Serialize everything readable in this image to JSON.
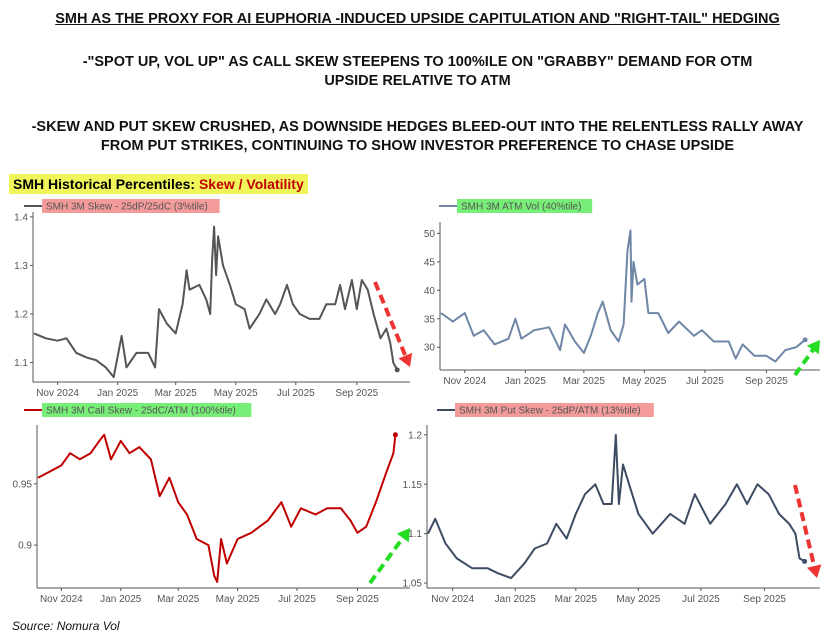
{
  "headline": "SMH AS THE PROXY FOR AI EUPHORIA -INDUCED UPSIDE CAPITULATION AND \"RIGHT-TAIL\" HEDGING",
  "subhead1": "-\"SPOT UP, VOL UP\" AS CALL SKEW STEEPENS TO 100%ILE ON \"GRABBY\" DEMAND FOR OTM UPSIDE RELATIVE TO ATM",
  "subhead2": "-SKEW AND PUT SKEW CRUSHED, AS DOWNSIDE HEDGES BLEED-OUT INTO THE RELENTLESS RALLY AWAY FROM PUT STRIKES, CONTINUING TO SHOW INVESTOR PREFERENCE TO CHASE UPSIDE",
  "section_label": "SMH Historical Percentiles:",
  "section_label_accent": "Skew / Volatility",
  "source": "Source: Nomura Vol",
  "colors": {
    "up_arrow": "#22dd22",
    "down_arrow": "#ee3333",
    "legend_red": "#f08080",
    "legend_green": "#77ee77"
  },
  "chart_data": [
    {
      "type": "line",
      "title": "SMH 3M Skew - 25dP/25dC (3%tile)",
      "legend_bg": "#f39a9a",
      "color": "#555555",
      "ylim": [
        1.06,
        1.41
      ],
      "yticks": [
        "1.1",
        "1.2",
        "1.3",
        "1.4"
      ],
      "xticks": [
        "Nov 2024",
        "Jan 2025",
        "Mar 2025",
        "May 2025",
        "Jul 2025",
        "Sep 2025"
      ],
      "trend": "down",
      "points": [
        [
          "2024-10-08",
          1.16
        ],
        [
          "2024-10-20",
          1.15
        ],
        [
          "2024-11-01",
          1.145
        ],
        [
          "2024-11-10",
          1.15
        ],
        [
          "2024-11-20",
          1.12
        ],
        [
          "2024-12-01",
          1.11
        ],
        [
          "2024-12-10",
          1.105
        ],
        [
          "2024-12-20",
          1.09
        ],
        [
          "2024-12-28",
          1.07
        ],
        [
          "2025-01-05",
          1.155
        ],
        [
          "2025-01-10",
          1.09
        ],
        [
          "2025-01-20",
          1.12
        ],
        [
          "2025-02-01",
          1.12
        ],
        [
          "2025-02-08",
          1.09
        ],
        [
          "2025-02-12",
          1.21
        ],
        [
          "2025-02-20",
          1.18
        ],
        [
          "2025-03-01",
          1.16
        ],
        [
          "2025-03-08",
          1.22
        ],
        [
          "2025-03-12",
          1.29
        ],
        [
          "2025-03-15",
          1.25
        ],
        [
          "2025-03-25",
          1.26
        ],
        [
          "2025-04-01",
          1.23
        ],
        [
          "2025-04-05",
          1.2
        ],
        [
          "2025-04-07",
          1.31
        ],
        [
          "2025-04-09",
          1.38
        ],
        [
          "2025-04-11",
          1.28
        ],
        [
          "2025-04-13",
          1.36
        ],
        [
          "2025-04-18",
          1.3
        ],
        [
          "2025-04-25",
          1.26
        ],
        [
          "2025-05-01",
          1.22
        ],
        [
          "2025-05-10",
          1.21
        ],
        [
          "2025-05-15",
          1.17
        ],
        [
          "2025-05-25",
          1.2
        ],
        [
          "2025-06-01",
          1.23
        ],
        [
          "2025-06-10",
          1.2
        ],
        [
          "2025-06-15",
          1.22
        ],
        [
          "2025-06-22",
          1.26
        ],
        [
          "2025-06-28",
          1.22
        ],
        [
          "2025-07-05",
          1.2
        ],
        [
          "2025-07-15",
          1.19
        ],
        [
          "2025-07-25",
          1.19
        ],
        [
          "2025-08-01",
          1.22
        ],
        [
          "2025-08-10",
          1.22
        ],
        [
          "2025-08-15",
          1.26
        ],
        [
          "2025-08-20",
          1.21
        ],
        [
          "2025-08-27",
          1.27
        ],
        [
          "2025-09-01",
          1.21
        ],
        [
          "2025-09-06",
          1.27
        ],
        [
          "2025-09-12",
          1.25
        ],
        [
          "2025-09-18",
          1.2
        ],
        [
          "2025-09-25",
          1.15
        ],
        [
          "2025-10-01",
          1.17
        ],
        [
          "2025-10-05",
          1.14
        ],
        [
          "2025-10-08",
          1.1
        ],
        [
          "2025-10-12",
          1.085
        ]
      ]
    },
    {
      "type": "line",
      "title": "SMH 3M ATM Vol (40%tile)",
      "legend_bg": "#77ee77",
      "color": "#6f86a6",
      "ylim": [
        26,
        52
      ],
      "yticks": [
        "30",
        "35",
        "40",
        "45",
        "50"
      ],
      "xticks": [
        "Nov 2024",
        "Jan 2025",
        "Mar 2025",
        "May 2025",
        "Jul 2025",
        "Sep 2025"
      ],
      "trend": "up",
      "points": [
        [
          "2024-10-08",
          36
        ],
        [
          "2024-10-20",
          34.5
        ],
        [
          "2024-11-01",
          36
        ],
        [
          "2024-11-10",
          32
        ],
        [
          "2024-11-20",
          33
        ],
        [
          "2024-12-01",
          30.5
        ],
        [
          "2024-12-15",
          31.5
        ],
        [
          "2024-12-22",
          35
        ],
        [
          "2024-12-28",
          31.5
        ],
        [
          "2025-01-10",
          33
        ],
        [
          "2025-01-25",
          33.5
        ],
        [
          "2025-02-05",
          29.5
        ],
        [
          "2025-02-10",
          34
        ],
        [
          "2025-02-20",
          31
        ],
        [
          "2025-03-01",
          29
        ],
        [
          "2025-03-08",
          32
        ],
        [
          "2025-03-15",
          36
        ],
        [
          "2025-03-20",
          38
        ],
        [
          "2025-03-28",
          33
        ],
        [
          "2025-04-05",
          31
        ],
        [
          "2025-04-10",
          34
        ],
        [
          "2025-04-14",
          47
        ],
        [
          "2025-04-17",
          50.5
        ],
        [
          "2025-04-18",
          38
        ],
        [
          "2025-04-20",
          45
        ],
        [
          "2025-04-24",
          41
        ],
        [
          "2025-05-01",
          42
        ],
        [
          "2025-05-05",
          36
        ],
        [
          "2025-05-15",
          36
        ],
        [
          "2025-05-25",
          32.5
        ],
        [
          "2025-06-05",
          34.5
        ],
        [
          "2025-06-20",
          32
        ],
        [
          "2025-06-28",
          33
        ],
        [
          "2025-07-10",
          31
        ],
        [
          "2025-07-25",
          31
        ],
        [
          "2025-08-01",
          28
        ],
        [
          "2025-08-08",
          30.5
        ],
        [
          "2025-08-20",
          28.5
        ],
        [
          "2025-09-01",
          28.5
        ],
        [
          "2025-09-10",
          27.5
        ],
        [
          "2025-09-20",
          29.5
        ],
        [
          "2025-10-01",
          30
        ],
        [
          "2025-10-10",
          31.3
        ]
      ]
    },
    {
      "type": "line",
      "title": "SMH 3M Call Skew - 25dC/ATM (100%tile)",
      "legend_bg": "#77ee77",
      "color": "#c00000",
      "ylim": [
        0.865,
        0.998
      ],
      "yticks": [
        "0.9",
        "0.95"
      ],
      "xticks": [
        "Nov 2024",
        "Jan 2025",
        "Mar 2025",
        "May 2025",
        "Jul 2025",
        "Sep 2025"
      ],
      "trend": "up",
      "points": [
        [
          "2024-10-08",
          0.955
        ],
        [
          "2024-10-20",
          0.96
        ],
        [
          "2024-11-01",
          0.965
        ],
        [
          "2024-11-10",
          0.975
        ],
        [
          "2024-11-20",
          0.97
        ],
        [
          "2024-12-01",
          0.975
        ],
        [
          "2024-12-10",
          0.985
        ],
        [
          "2024-12-15",
          0.99
        ],
        [
          "2024-12-22",
          0.97
        ],
        [
          "2025-01-01",
          0.985
        ],
        [
          "2025-01-10",
          0.975
        ],
        [
          "2025-01-20",
          0.98
        ],
        [
          "2025-02-01",
          0.97
        ],
        [
          "2025-02-10",
          0.94
        ],
        [
          "2025-02-20",
          0.955
        ],
        [
          "2025-03-01",
          0.935
        ],
        [
          "2025-03-10",
          0.925
        ],
        [
          "2025-03-20",
          0.905
        ],
        [
          "2025-04-01",
          0.9
        ],
        [
          "2025-04-07",
          0.875
        ],
        [
          "2025-04-10",
          0.87
        ],
        [
          "2025-04-14",
          0.905
        ],
        [
          "2025-04-20",
          0.885
        ],
        [
          "2025-05-01",
          0.905
        ],
        [
          "2025-05-15",
          0.91
        ],
        [
          "2025-06-01",
          0.92
        ],
        [
          "2025-06-15",
          0.935
        ],
        [
          "2025-06-25",
          0.915
        ],
        [
          "2025-07-05",
          0.93
        ],
        [
          "2025-07-20",
          0.925
        ],
        [
          "2025-08-01",
          0.93
        ],
        [
          "2025-08-15",
          0.93
        ],
        [
          "2025-08-25",
          0.92
        ],
        [
          "2025-09-01",
          0.91
        ],
        [
          "2025-09-10",
          0.915
        ],
        [
          "2025-09-20",
          0.935
        ],
        [
          "2025-10-01",
          0.96
        ],
        [
          "2025-10-08",
          0.975
        ],
        [
          "2025-10-10",
          0.99
        ]
      ]
    },
    {
      "type": "line",
      "title": "SMH 3M Put Skew - 25dP/ATM (13%tile)",
      "legend_bg": "#f39a9a",
      "color": "#3e4c63",
      "ylim": [
        1.045,
        1.21
      ],
      "yticks": [
        "1.05",
        "1.1",
        "1.15",
        "1.2"
      ],
      "xticks": [
        "Nov 2024",
        "Jan 2025",
        "Mar 2025",
        "May 2025",
        "Jul 2025",
        "Sep 2025"
      ],
      "trend": "down",
      "points": [
        [
          "2024-10-08",
          1.1
        ],
        [
          "2024-10-15",
          1.115
        ],
        [
          "2024-10-25",
          1.09
        ],
        [
          "2024-11-05",
          1.075
        ],
        [
          "2024-11-20",
          1.065
        ],
        [
          "2024-12-05",
          1.065
        ],
        [
          "2024-12-15",
          1.06
        ],
        [
          "2024-12-28",
          1.055
        ],
        [
          "2025-01-10",
          1.07
        ],
        [
          "2025-01-20",
          1.085
        ],
        [
          "2025-02-01",
          1.09
        ],
        [
          "2025-02-10",
          1.11
        ],
        [
          "2025-02-20",
          1.095
        ],
        [
          "2025-03-01",
          1.12
        ],
        [
          "2025-03-10",
          1.14
        ],
        [
          "2025-03-20",
          1.15
        ],
        [
          "2025-03-28",
          1.13
        ],
        [
          "2025-04-05",
          1.13
        ],
        [
          "2025-04-09",
          1.2
        ],
        [
          "2025-04-12",
          1.13
        ],
        [
          "2025-04-16",
          1.17
        ],
        [
          "2025-04-22",
          1.15
        ],
        [
          "2025-05-01",
          1.12
        ],
        [
          "2025-05-15",
          1.1
        ],
        [
          "2025-06-01",
          1.12
        ],
        [
          "2025-06-15",
          1.11
        ],
        [
          "2025-06-25",
          1.14
        ],
        [
          "2025-07-10",
          1.11
        ],
        [
          "2025-07-25",
          1.13
        ],
        [
          "2025-08-05",
          1.15
        ],
        [
          "2025-08-15",
          1.13
        ],
        [
          "2025-08-25",
          1.15
        ],
        [
          "2025-09-05",
          1.14
        ],
        [
          "2025-09-15",
          1.12
        ],
        [
          "2025-09-25",
          1.11
        ],
        [
          "2025-10-01",
          1.1
        ],
        [
          "2025-10-05",
          1.075
        ],
        [
          "2025-10-10",
          1.072
        ]
      ]
    }
  ]
}
